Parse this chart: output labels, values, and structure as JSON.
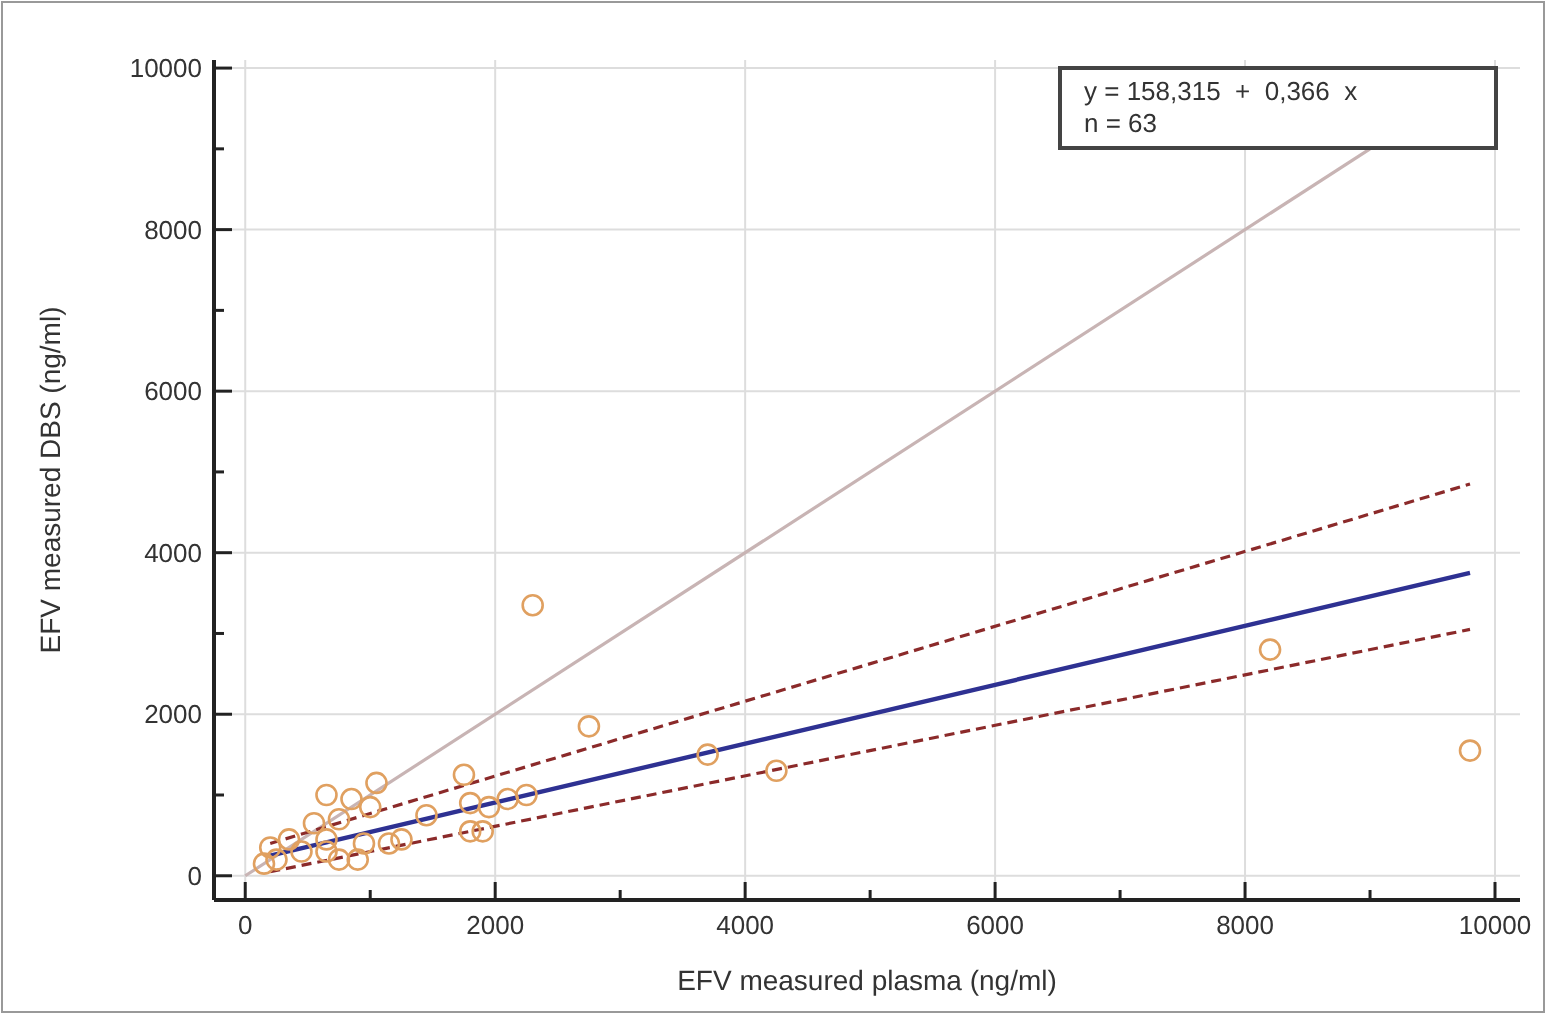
{
  "chart_data": {
    "type": "scatter",
    "xlabel": "EFV measured plasma (ng/ml)",
    "ylabel": "EFV measured DBS (ng/ml)",
    "xlim": [
      -250,
      10200
    ],
    "ylim": [
      -300,
      10100
    ],
    "xticks": [
      0,
      {
        "value": 1000,
        "label": null
      },
      2000,
      {
        "value": 3000,
        "label": null
      },
      4000,
      {
        "value": 5000,
        "label": null
      },
      6000,
      {
        "value": 7000,
        "label": null
      },
      8000,
      {
        "value": 9000,
        "label": null
      },
      10000
    ],
    "yticks": [
      0,
      {
        "value": 1000,
        "label": null
      },
      2000,
      {
        "value": 3000,
        "label": null
      },
      4000,
      {
        "value": 5000,
        "label": null
      },
      6000,
      {
        "value": 7000,
        "label": null
      },
      8000,
      {
        "value": 9000,
        "label": null
      },
      10000
    ],
    "grid": true,
    "annotations": [
      "y = 158,315  +  0,366  x",
      "n = 63"
    ],
    "series": [
      {
        "type": "line",
        "color": "#c8b4b4",
        "line_style": "solid",
        "marker": "none",
        "x": [
          0,
          9000
        ],
        "values": [
          0,
          9000
        ]
      },
      {
        "type": "line",
        "color": "#8b2a2a",
        "line_style": "dashed",
        "marker": "none",
        "x": [
          200,
          9800
        ],
        "values": [
          400,
          4850
        ]
      },
      {
        "type": "line",
        "color": "#8b2a2a",
        "line_style": "dashed",
        "marker": "none",
        "x": [
          200,
          9800
        ],
        "values": [
          50,
          3050
        ]
      },
      {
        "type": "line",
        "color": "#2e3192",
        "line_style": "solid",
        "marker": "none",
        "x": [
          200,
          9800
        ],
        "values": [
          250,
          3750
        ]
      },
      {
        "color": "#e0a060",
        "marker": "circle",
        "x": [
          2300,
          2750,
          3700,
          4250,
          8200,
          9800,
          650,
          850,
          1050,
          1750,
          1000,
          750,
          550,
          350,
          200,
          150,
          250,
          450,
          650,
          750,
          900,
          950,
          1150,
          1250,
          1450,
          1800,
          1800,
          1900,
          1950,
          2100,
          2250,
          650
        ],
        "values": [
          3350,
          1850,
          1500,
          1300,
          2800,
          1550,
          1000,
          950,
          1150,
          1250,
          850,
          700,
          650,
          450,
          350,
          150,
          200,
          300,
          300,
          200,
          200,
          400,
          400,
          450,
          750,
          900,
          550,
          550,
          850,
          950,
          1000,
          450
        ]
      }
    ]
  }
}
